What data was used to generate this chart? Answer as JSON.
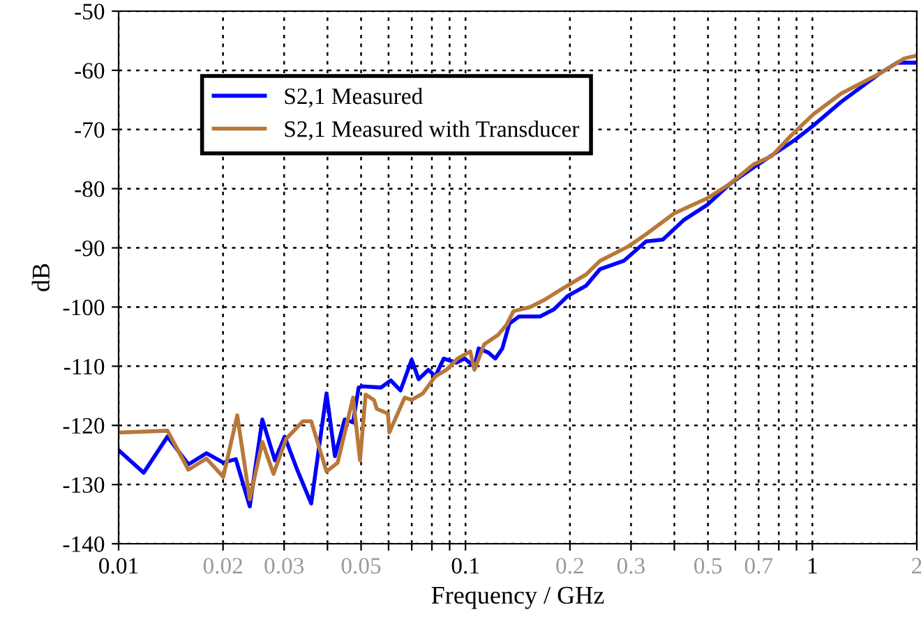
{
  "chart_data": {
    "type": "line",
    "xlabel": "Frequency / GHz",
    "ylabel": "dB",
    "log": "x",
    "grid": true,
    "legend": "top left",
    "line_style": "solid",
    "marker": "none",
    "xlim": [
      0.01,
      2
    ],
    "ylim": [
      -140,
      -50
    ],
    "xticks": [
      0.01,
      0.02,
      0.03,
      {
        "value": 0.04,
        "label": null
      },
      0.05,
      {
        "value": 0.06,
        "label": null
      },
      {
        "value": 0.07,
        "label": null
      },
      {
        "value": 0.08,
        "label": null
      },
      {
        "value": 0.09,
        "label": null
      },
      0.1,
      0.2,
      0.3,
      {
        "value": 0.4,
        "label": null
      },
      0.5,
      {
        "value": 0.6,
        "label": null
      },
      0.7,
      {
        "value": 0.8,
        "label": null
      },
      {
        "value": 0.9,
        "label": null
      },
      1,
      2
    ],
    "yticks": [
      -140,
      -130,
      -120,
      -110,
      -100,
      -90,
      -80,
      -70,
      -60,
      -50
    ],
    "series": [
      {
        "name": "S2,1 Measured",
        "color": "#0000ff",
        "x": [
          0.01,
          0.01181,
          0.01383,
          0.01589,
          0.01792,
          0.02003,
          0.02177,
          0.02388,
          0.02596,
          0.02821,
          0.03011,
          0.03272,
          0.03591,
          0.03975,
          0.04203,
          0.04484,
          0.04741,
          0.0492,
          0.05057,
          0.05703,
          0.06088,
          0.06495,
          0.06996,
          0.07327,
          0.07816,
          0.08186,
          0.08656,
          0.09408,
          0.09945,
          0.1061,
          0.1091,
          0.1164,
          0.1219,
          0.1277,
          0.1338,
          0.1427,
          0.164,
          0.1799,
          0.1974,
          0.2226,
          0.2442,
          0.2859,
          0.3316,
          0.3705,
          0.4257,
          0.4984,
          0.578,
          0.6766,
          0.8142,
          0.8935,
          1.0075,
          1.212,
          1.557,
          1.756,
          2.0
        ],
        "values": [
          -124.2,
          -128,
          -121.9,
          -126.6,
          -124.7,
          -126.3,
          -125.7,
          -133.7,
          -119,
          -125.9,
          -121.9,
          -127.5,
          -133.2,
          -114.6,
          -125.2,
          -119,
          -119.5,
          -113.6,
          -113.4,
          -113.6,
          -112.4,
          -114.1,
          -108.9,
          -112.2,
          -110.6,
          -111.7,
          -108.7,
          -109.4,
          -108.7,
          -110.1,
          -107,
          -107.7,
          -108.7,
          -107,
          -102.8,
          -101.6,
          -101.6,
          -100.4,
          -98.1,
          -96.4,
          -93.6,
          -92.2,
          -88.9,
          -88.6,
          -85.3,
          -82.7,
          -79.2,
          -76.4,
          -73.3,
          -71.7,
          -69.3,
          -65.3,
          -60.6,
          -58.7,
          -58.7
        ]
      },
      {
        "name": "S2,1 Measured with Transducer",
        "color": "#b8783a",
        "x": [
          0.01,
          0.01383,
          0.01589,
          0.01792,
          0.02003,
          0.02198,
          0.02388,
          0.02596,
          0.02796,
          0.03039,
          0.03396,
          0.03591,
          0.03975,
          0.04281,
          0.04741,
          0.04965,
          0.05152,
          0.05446,
          0.05548,
          0.05974,
          0.06031,
          0.06678,
          0.06996,
          0.07532,
          0.08186,
          0.08818,
          0.09495,
          0.1032,
          0.1061,
          0.1132,
          0.1242,
          0.1313,
          0.1375,
          0.1537,
          0.1687,
          0.1902,
          0.2226,
          0.2442,
          0.2938,
          0.3316,
          0.399,
          0.4984,
          0.578,
          0.6766,
          0.763,
          0.869,
          1.0075,
          1.212,
          1.557,
          1.839,
          2.0
        ],
        "values": [
          -121.2,
          -120.9,
          -127.5,
          -125.6,
          -128.7,
          -118.3,
          -132.5,
          -122.8,
          -128.2,
          -122.3,
          -119.3,
          -119.3,
          -127.8,
          -126.3,
          -115.3,
          -125.9,
          -114.8,
          -115.7,
          -117.2,
          -118,
          -121.2,
          -115.3,
          -115.7,
          -114.6,
          -111.7,
          -110.6,
          -108.7,
          -107.5,
          -110.6,
          -106.3,
          -104.7,
          -103,
          -100.7,
          -100,
          -98.8,
          -96.9,
          -94.5,
          -92.2,
          -89.8,
          -87.7,
          -84.2,
          -81.6,
          -79.2,
          -75.9,
          -74.5,
          -71,
          -67.4,
          -63.9,
          -60.6,
          -58,
          -57.5
        ]
      }
    ]
  }
}
